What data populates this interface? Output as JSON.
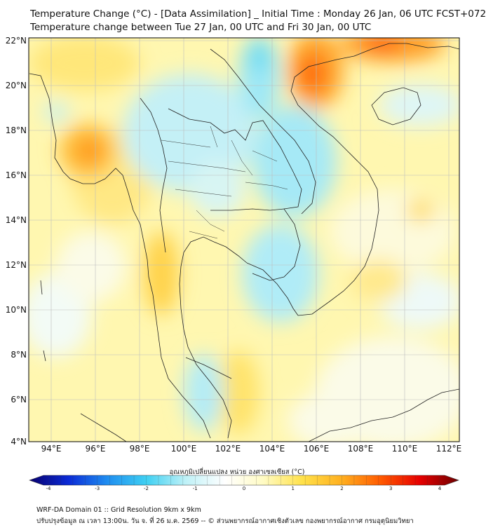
{
  "header": {
    "title_line1": "Temperature Change (°C) - [Data Assimilation] _ Initial Time : Monday 26 Jan, 06 UTC FCST+072",
    "title_line2": "Temperature change between Tue 27 Jan, 00 UTC and Fri 30 Jan, 00 UTC"
  },
  "map": {
    "lat_labels": [
      "22°N",
      "20°N",
      "18°N",
      "16°N",
      "14°N",
      "12°N",
      "10°N",
      "8°N",
      "6°N",
      "4°N"
    ],
    "lon_labels": [
      "94°E",
      "96°E",
      "98°E",
      "100°E",
      "102°E",
      "104°E",
      "106°E",
      "108°E",
      "110°E",
      "112°E"
    ],
    "lat_range": [
      4,
      22
    ],
    "lon_range": [
      93,
      112.5
    ]
  },
  "colorbar": {
    "title": "อุณหภูมิเปลี่ยนแปลง หน่วย องศาเซลเซียส (°C)",
    "ticks": [
      "-4",
      "-3",
      "-2",
      "-1",
      "0",
      "1",
      "2",
      "3",
      "4"
    ],
    "range": [
      -4,
      4
    ],
    "colors": [
      "#08006e",
      "#0b2bd6",
      "#1f8ef0",
      "#3fd0f2",
      "#bff1f7",
      "#ffffff",
      "#fffbc4",
      "#ffe14a",
      "#ffb020",
      "#ff5a00",
      "#e60000",
      "#6e0000"
    ]
  },
  "footer": {
    "line1": "WRF-DA Domain 01 :: Grid Resolution 9km x 9km",
    "line2": "ปรับปรุงข้อมูล ณ เวลา 13:00น. วัน จ. ที่ 26 ม.ค. 2569 -- © ส่วนพยากรณ์อากาศเชิงตัวเลข กองพยากรณ์อากาศ กรมอุตุนิยมวิทยา"
  }
}
